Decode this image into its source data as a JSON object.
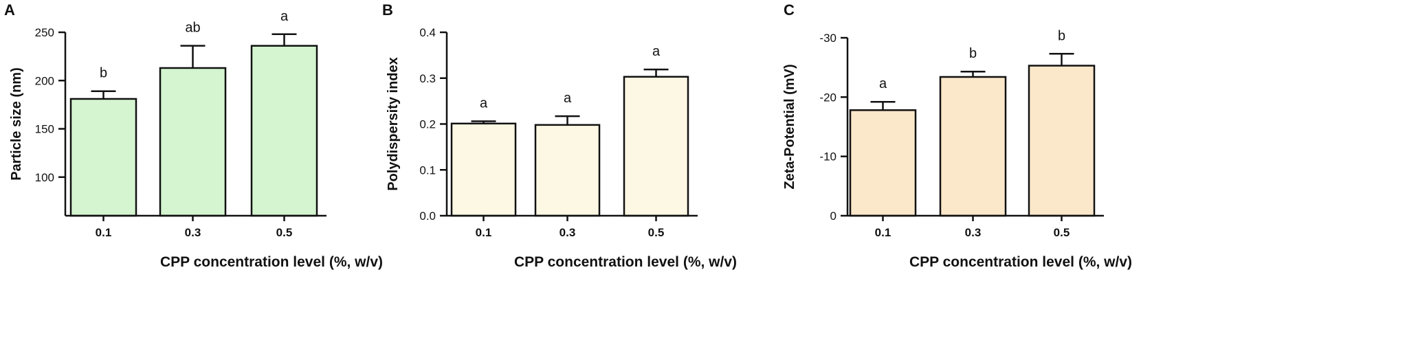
{
  "chart_data": [
    {
      "panel": "A",
      "type": "bar",
      "categories": [
        "0.1",
        "0.3",
        "0.5"
      ],
      "values": [
        181,
        213,
        236
      ],
      "errors": [
        8,
        23,
        12
      ],
      "letters": [
        "b",
        "ab",
        "a"
      ],
      "xlabel": "CPP concentration level (%, w/v)",
      "ylabel": "Particle size (nm)",
      "ylim": [
        60,
        250
      ],
      "yticks": [
        100,
        150,
        200,
        250
      ],
      "ytick_labels": [
        "100",
        "150",
        "200",
        "250"
      ],
      "bar_color": "#d4f5cf",
      "grid": false
    },
    {
      "panel": "B",
      "type": "bar",
      "categories": [
        "0.1",
        "0.3",
        "0.5"
      ],
      "values": [
        0.201,
        0.198,
        0.303
      ],
      "errors": [
        0.005,
        0.019,
        0.016
      ],
      "letters": [
        "a",
        "a",
        "a"
      ],
      "xlabel": "CPP concentration level (%, w/v)",
      "ylabel": "Polydispersity index",
      "ylim": [
        0,
        0.4
      ],
      "yticks": [
        0,
        0.1,
        0.2,
        0.3,
        0.4
      ],
      "ytick_labels": [
        "0.0",
        "0.1",
        "0.2",
        "0.3",
        "0.4"
      ],
      "bar_color": "#fdf8e4",
      "grid": false
    },
    {
      "panel": "C",
      "type": "bar",
      "categories": [
        "0.1",
        "0.3",
        "0.5"
      ],
      "values": [
        -17.8,
        -23.4,
        -25.3
      ],
      "errors": [
        1.4,
        0.9,
        2.0
      ],
      "letters": [
        "a",
        "b",
        "b"
      ],
      "xlabel": "CPP concentration level (%, w/v)",
      "ylabel": "Zeta-Potential (mV)",
      "ylim": [
        0,
        -30
      ],
      "yticks": [
        0,
        -10,
        -20,
        -30
      ],
      "ytick_labels": [
        "0",
        "-10",
        "-20",
        "-30"
      ],
      "bar_color": "#fbe7c9",
      "grid": false
    }
  ]
}
